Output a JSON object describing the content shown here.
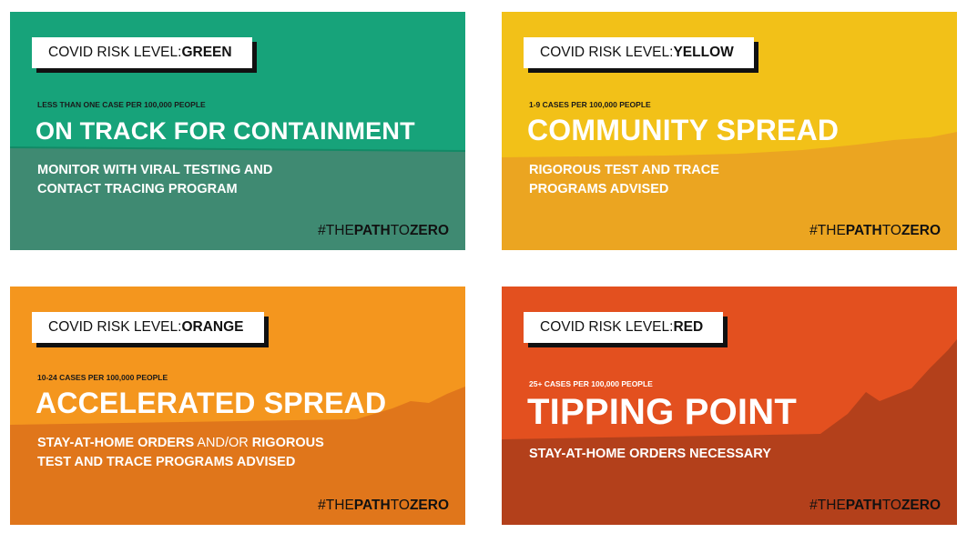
{
  "colors": {
    "green_top": "#17a37a",
    "green_bottom": "#3f8a72",
    "yellow_top": "#f2c118",
    "yellow_bottom": "#eba521",
    "orange_top": "#f4961e",
    "orange_bottom": "#e0761b",
    "red_top": "#e3501f",
    "red_bottom": "#b3401b",
    "badge_shadow": "#111111"
  },
  "hashtag": {
    "pre": "#THE",
    "mid": "PATH",
    "post": "TO",
    "end": "ZERO"
  },
  "cards": [
    {
      "badge_prefix": "COVID RISK LEVEL: ",
      "badge_level": "GREEN",
      "subheading": "LESS THAN ONE CASE PER 100,000 PEOPLE",
      "headline": "ON TRACK FOR CONTAINMENT",
      "desc_line1": "MONITOR WITH VIRAL TESTING AND",
      "desc_line2": "CONTACT TRACING PROGRAM"
    },
    {
      "badge_prefix": "COVID RISK LEVEL: ",
      "badge_level": "YELLOW",
      "subheading": "1-9 CASES PER 100,000 PEOPLE",
      "headline": "COMMUNITY SPREAD",
      "desc_line1": "RIGOROUS TEST AND TRACE",
      "desc_line2": "PROGRAMS ADVISED"
    },
    {
      "badge_prefix": "COVID RISK LEVEL: ",
      "badge_level": "ORANGE",
      "subheading": "10-24 CASES PER 100,000 PEOPLE",
      "headline": "ACCELERATED SPREAD",
      "desc_a": "STAY-AT-HOME ORDERS",
      "desc_b": " AND/OR ",
      "desc_c": "RIGOROUS",
      "desc_line2": "TEST AND TRACE PROGRAMS ADVISED"
    },
    {
      "badge_prefix": "COVID RISK LEVEL: ",
      "badge_level": "RED",
      "subheading": "25+ CASES PER 100,000 PEOPLE",
      "headline": "TIPPING POINT",
      "desc_line1": "STAY-AT-HOME ORDERS NECESSARY"
    }
  ]
}
